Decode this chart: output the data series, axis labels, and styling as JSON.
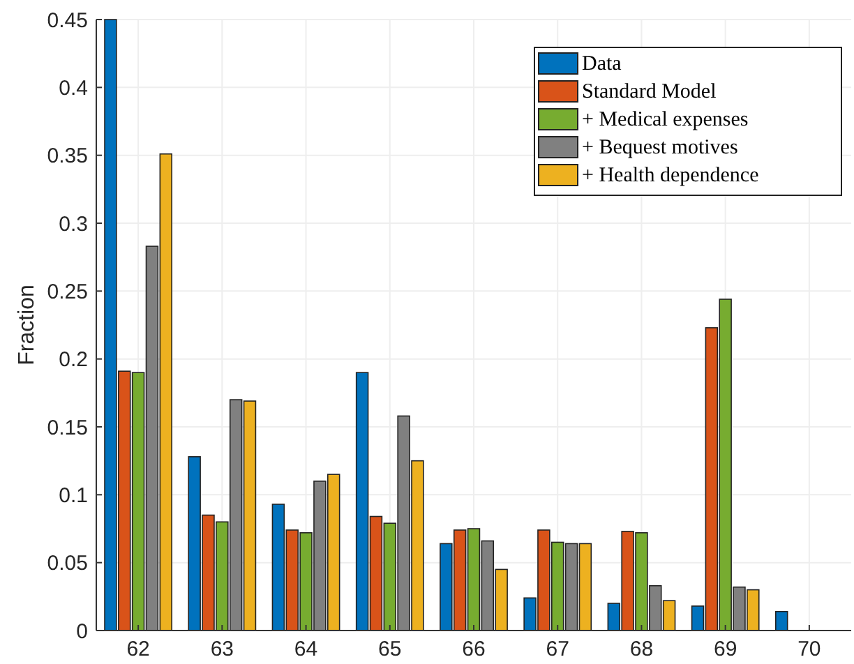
{
  "chart_data": {
    "type": "bar",
    "ylabel": "Fraction",
    "categories": [
      "62",
      "63",
      "64",
      "65",
      "66",
      "67",
      "68",
      "69",
      "70"
    ],
    "series": [
      {
        "name": "Data",
        "color": "#0072bd",
        "values": [
          0.45,
          0.128,
          0.093,
          0.19,
          0.064,
          0.024,
          0.02,
          0.018,
          0.014
        ]
      },
      {
        "name": "Standard Model",
        "color": "#d95319",
        "values": [
          0.191,
          0.085,
          0.074,
          0.084,
          0.074,
          0.074,
          0.073,
          0.223,
          0
        ]
      },
      {
        "name": "+ Medical expenses",
        "color": "#77ac30",
        "values": [
          0.19,
          0.08,
          0.072,
          0.079,
          0.075,
          0.065,
          0.072,
          0.244,
          0
        ]
      },
      {
        "name": "+ Bequest motives",
        "color": "#808080",
        "values": [
          0.283,
          0.17,
          0.11,
          0.158,
          0.066,
          0.064,
          0.033,
          0.032,
          0
        ]
      },
      {
        "name": "+ Health dependence",
        "color": "#edb120",
        "values": [
          0.351,
          0.169,
          0.115,
          0.125,
          0.045,
          0.064,
          0.022,
          0.03,
          0
        ]
      }
    ],
    "ylim": [
      0,
      0.45
    ],
    "yticks": [
      {
        "value": 0,
        "label": "0"
      },
      0.05,
      0.1,
      0.15,
      0.2,
      0.25,
      0.3,
      0.35,
      0.4,
      0.45
    ],
    "grid": true,
    "legend": "top right"
  }
}
